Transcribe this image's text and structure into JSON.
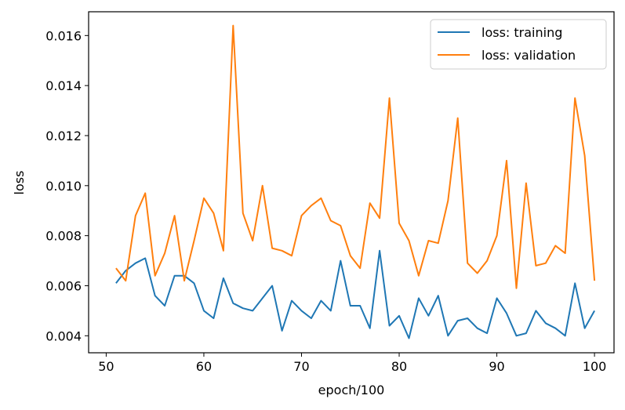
{
  "chart_data": {
    "type": "line",
    "xlabel": "epoch/100",
    "ylabel": "loss",
    "xlim": [
      48.2,
      102.0
    ],
    "ylim": [
      0.00332,
      0.01695
    ],
    "xticks": [
      50,
      60,
      70,
      80,
      90,
      100
    ],
    "yticks": [
      0.004,
      0.006,
      0.008,
      0.01,
      0.012,
      0.014,
      0.016
    ],
    "ytick_labels": [
      "0.004",
      "0.006",
      "0.008",
      "0.010",
      "0.012",
      "0.014",
      "0.016"
    ],
    "grid": false,
    "legend_position": "top-right",
    "x": [
      51,
      52,
      53,
      54,
      55,
      56,
      57,
      58,
      59,
      60,
      61,
      62,
      63,
      64,
      65,
      66,
      67,
      68,
      69,
      70,
      71,
      72,
      73,
      74,
      75,
      76,
      77,
      78,
      79,
      80,
      81,
      82,
      83,
      84,
      85,
      86,
      87,
      88,
      89,
      90,
      91,
      92,
      93,
      94,
      95,
      96,
      97,
      98,
      99,
      100
    ],
    "series": [
      {
        "name": "loss: training",
        "color": "#1f77b4",
        "values": [
          0.0061,
          0.0066,
          0.0069,
          0.0071,
          0.0056,
          0.0052,
          0.0064,
          0.0064,
          0.0061,
          0.005,
          0.0047,
          0.0063,
          0.0053,
          0.0051,
          0.005,
          0.0055,
          0.006,
          0.0042,
          0.0054,
          0.005,
          0.0047,
          0.0054,
          0.005,
          0.007,
          0.0052,
          0.0052,
          0.0043,
          0.0074,
          0.0044,
          0.0048,
          0.0039,
          0.0055,
          0.0048,
          0.0056,
          0.004,
          0.0046,
          0.0047,
          0.0043,
          0.0041,
          0.0055,
          0.0049,
          0.004,
          0.0041,
          0.005,
          0.0045,
          0.0043,
          0.004,
          0.0061,
          0.0043,
          0.005
        ]
      },
      {
        "name": "loss: validation",
        "color": "#ff7f0e",
        "values": [
          0.0067,
          0.0062,
          0.0088,
          0.0097,
          0.0064,
          0.0073,
          0.0088,
          0.0062,
          0.0078,
          0.0095,
          0.0089,
          0.0074,
          0.0164,
          0.0089,
          0.0078,
          0.01,
          0.0075,
          0.0074,
          0.0072,
          0.0088,
          0.0092,
          0.0095,
          0.0086,
          0.0084,
          0.0072,
          0.0067,
          0.0093,
          0.0087,
          0.0135,
          0.0085,
          0.0078,
          0.0064,
          0.0078,
          0.0077,
          0.0094,
          0.0127,
          0.0069,
          0.0065,
          0.007,
          0.008,
          0.011,
          0.0059,
          0.0101,
          0.0068,
          0.0069,
          0.0076,
          0.0073,
          0.0135,
          0.0112,
          0.0062
        ]
      }
    ]
  }
}
